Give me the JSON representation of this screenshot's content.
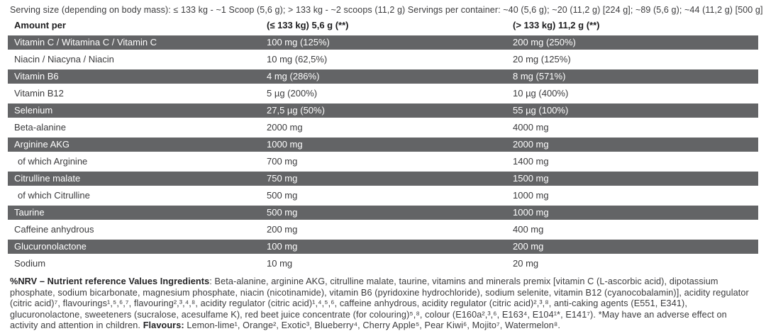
{
  "serving_info": {
    "text": "Serving size (depending on body mass): ≤ 133 kg - ~1 Scoop (5,6 g); > 133 kg - ~2 scoops (11,2 g) Servings per container: ~40 (5,6 g); ~20 (11,2 g) [224 g]; ~89 (5,6 g); ~44 (11,2 g) [500 g]"
  },
  "table": {
    "headers": {
      "col1": "Amount per",
      "col2": "(≤ 133 kg) 5,6 g (**)",
      "col3": "(> 133 kg) 11,2 g (**)"
    },
    "rows": [
      {
        "name": "Vitamin C / Witamina C / Vitamin C",
        "small": "100 mg (125%)",
        "large": "200 mg (250%)",
        "indent": false
      },
      {
        "name": "Niacin / Niacyna / Niacin",
        "small": "10 mg (62,5%)",
        "large": "20 mg (125%)",
        "indent": false
      },
      {
        "name": "Vitamin B6",
        "small": "4 mg (286%)",
        "large": "8 mg (571%)",
        "indent": false
      },
      {
        "name": "Vitamin B12",
        "small": "5 µg (200%)",
        "large": "10 µg (400%)",
        "indent": false
      },
      {
        "name": "Selenium",
        "small": "27,5 µg (50%)",
        "large": "55 µg (100%)",
        "indent": false
      },
      {
        "name": "Beta-alanine",
        "small": "2000 mg",
        "large": "4000 mg",
        "indent": false
      },
      {
        "name": "Arginine AKG",
        "small": "1000 mg",
        "large": "2000 mg",
        "indent": false
      },
      {
        "name": "of which Arginine",
        "small": "700 mg",
        "large": "1400 mg",
        "indent": true
      },
      {
        "name": "Citrulline malate",
        "small": "750 mg",
        "large": "1500 mg",
        "indent": false
      },
      {
        "name": "of which Citrulline",
        "small": "500 mg",
        "large": "1000 mg",
        "indent": true
      },
      {
        "name": "Taurine",
        "small": "500 mg",
        "large": "1000 mg",
        "indent": false
      },
      {
        "name": "Caffeine anhydrous",
        "small": "200 mg",
        "large": "400 mg",
        "indent": false
      },
      {
        "name": "Glucuronolactone",
        "small": "100 mg",
        "large": "200 mg",
        "indent": false
      },
      {
        "name": "Sodium",
        "small": "10 mg",
        "large": "20 mg",
        "indent": false
      }
    ]
  },
  "footer": {
    "nrv_ingredients_bold": "%NRV – Nutrient reference Values Ingredients",
    "ingredients_text": ": Beta-alanine, arginine AKG, citrulline malate, taurine, vitamins and minerals premix [vitamin C (L-ascorbic acid), dipotassium phosphate, sodium bicarbonate, magnesium phosphate, niacin (nicotinamide), vitamin B6 (pyridoxine hydrochloride), sodium selenite, vitamin B12 (cyanocobalamin)], acidity regulator (citric acid)⁷, flavourings¹,⁵,⁶,⁷, flavouring²,³,⁴,⁸, acidity regulator (citric acid)¹,⁴,⁵,⁶, caffeine anhydrous, acidity regulator (citric acid)²,³,⁸, anti-caking agents (E551, E341), glucuronolactone, sweeteners (sucralose, acesulfame K), red beet juice concentrate (for colouring)⁵,⁸, colour (E160a²,³,⁶, E163⁴, E104¹*, E141⁷). *May have an adverse effect on activity and attention in children. ",
    "flavours_bold": "Flavours:",
    "flavours_list": " Lemon-lime¹, Orange², Exotic³, Blueberry⁴, Cherry Apple⁵, Pear Kiwi⁶, Mojito⁷, Watermelon⁸."
  },
  "colors": {
    "dark_row_bg": "#636466",
    "dark_row_text": "#ffffff",
    "light_row_text": "#3a3a3c",
    "body_text": "#3b3b3d"
  }
}
